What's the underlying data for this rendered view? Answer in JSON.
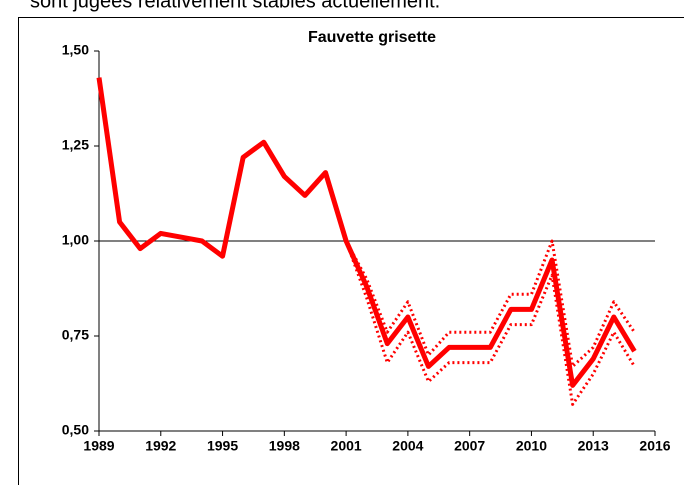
{
  "caption": "sont jugées relativement stables actuellement.",
  "chart_data": {
    "type": "line",
    "title": "Fauvette grisette",
    "x": [
      1989,
      1990,
      1991,
      1992,
      1993,
      1994,
      1995,
      1996,
      1997,
      1998,
      1999,
      2000,
      2001,
      2002,
      2003,
      2004,
      2005,
      2006,
      2007,
      2008,
      2009,
      2010,
      2011,
      2012,
      2013,
      2014,
      2015
    ],
    "series": [
      {
        "color": "#ff0000",
        "style": "solid",
        "values": [
          1.43,
          1.05,
          0.98,
          1.02,
          1.01,
          1.0,
          0.96,
          1.22,
          1.26,
          1.17,
          1.12,
          1.18,
          1.0,
          0.88,
          0.73,
          0.8,
          0.67,
          0.72,
          0.72,
          0.72,
          0.82,
          0.82,
          0.95,
          0.62,
          0.69,
          0.8,
          0.71
        ]
      },
      {
        "color": "#ff0000",
        "style": "dotted",
        "values": [
          null,
          null,
          null,
          null,
          null,
          null,
          null,
          null,
          null,
          null,
          null,
          null,
          1.0,
          0.9,
          0.76,
          0.84,
          0.7,
          0.76,
          0.76,
          0.76,
          0.86,
          0.86,
          1.0,
          0.67,
          0.72,
          0.84,
          0.76
        ]
      },
      {
        "color": "#ff0000",
        "style": "dotted",
        "values": [
          null,
          null,
          null,
          null,
          null,
          null,
          null,
          null,
          null,
          null,
          null,
          null,
          1.0,
          0.85,
          0.68,
          0.76,
          0.63,
          0.68,
          0.68,
          0.68,
          0.78,
          0.78,
          0.91,
          0.57,
          0.65,
          0.76,
          0.67
        ]
      }
    ],
    "xlim": [
      1989,
      2016
    ],
    "xticks": [
      1989,
      1992,
      1995,
      1998,
      2001,
      2004,
      2007,
      2010,
      2013,
      2016
    ],
    "ylim": [
      0.5,
      1.5
    ],
    "yticks": [
      {
        "value": 0.5,
        "label": "0,50"
      },
      {
        "value": 0.75,
        "label": "0,75"
      },
      {
        "value": 1,
        "label": "1,00"
      },
      {
        "value": 1.25,
        "label": "1,25"
      },
      {
        "value": 1.5,
        "label": "1,50"
      }
    ],
    "hline": 1
  }
}
